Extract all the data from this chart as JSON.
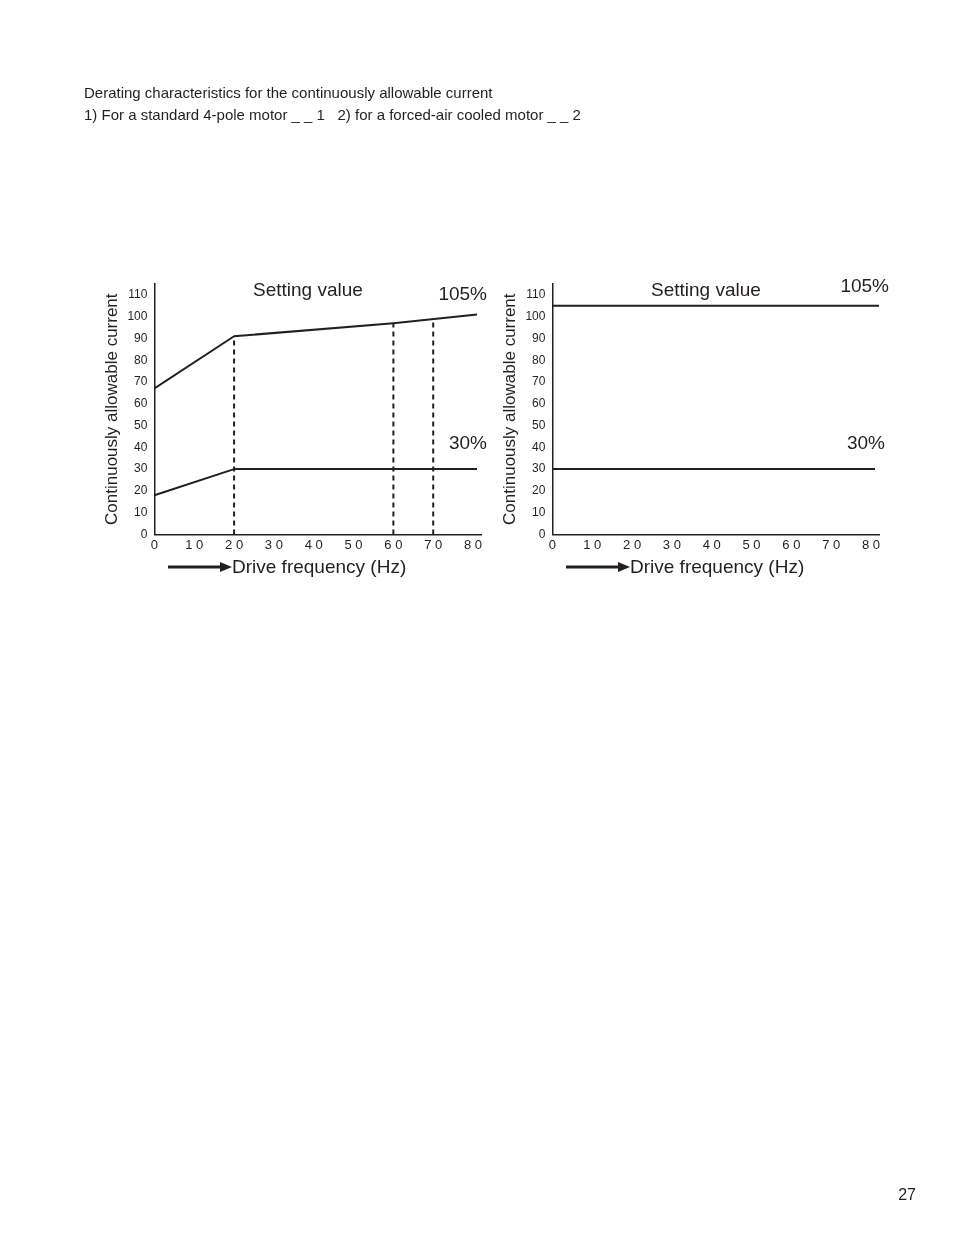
{
  "chart_data": [
    {
      "type": "line",
      "title": "Derating characteristics for the continuously allowable current",
      "subtitle": "1) For a standard 4-pole motor _ _ 1   2) for a forced-air cooled motor _ _ 2",
      "xlabel": "Drive frequency (Hz)",
      "ylabel": "Continuously allowable current",
      "xlim": [
        0,
        82
      ],
      "ylim": [
        0,
        115
      ],
      "xticks": [
        0,
        10,
        20,
        30,
        40,
        50,
        60,
        70,
        80
      ],
      "yticks": [
        0,
        10,
        20,
        30,
        40,
        50,
        60,
        70,
        80,
        90,
        100,
        110
      ],
      "grid": false,
      "legend": false,
      "marker": "none",
      "series": [
        {
          "color": "#231f20",
          "x": [
            0,
            20,
            60,
            81
          ],
          "values": [
            67,
            91,
            97,
            101
          ]
        },
        {
          "color": "#231f20",
          "x": [
            0,
            20,
            60,
            81
          ],
          "values": [
            18,
            30,
            30,
            30
          ]
        }
      ],
      "ref_lines": [
        {
          "axis": "x",
          "value": 20,
          "line_style": "dashed",
          "color": "#231f20"
        },
        {
          "axis": "x",
          "value": 60,
          "line_style": "dashed",
          "color": "#231f20"
        },
        {
          "axis": "x",
          "value": 70,
          "line_style": "dashed",
          "color": "#231f20"
        }
      ],
      "annotations": [
        "Setting value",
        "105%",
        "30%"
      ]
    },
    {
      "type": "line",
      "xlabel": "Drive frequency (Hz)",
      "ylabel": "Continuously allowable current",
      "xlim": [
        0,
        82
      ],
      "ylim": [
        0,
        115
      ],
      "xticks": [
        0,
        10,
        20,
        30,
        40,
        50,
        60,
        70,
        80
      ],
      "yticks": [
        0,
        10,
        20,
        30,
        40,
        50,
        60,
        70,
        80,
        90,
        100,
        110
      ],
      "grid": false,
      "legend": false,
      "marker": "none",
      "series": [
        {
          "color": "#231f20",
          "x": [
            0,
            82
          ],
          "values": [
            105,
            105
          ]
        },
        {
          "color": "#231f20",
          "x": [
            0,
            81
          ],
          "values": [
            30,
            30
          ]
        }
      ],
      "annotations": [
        "Setting value",
        "105%",
        "30%"
      ]
    },
    {
      "type": "other",
      "annotations": [
        "27"
      ]
    }
  ]
}
